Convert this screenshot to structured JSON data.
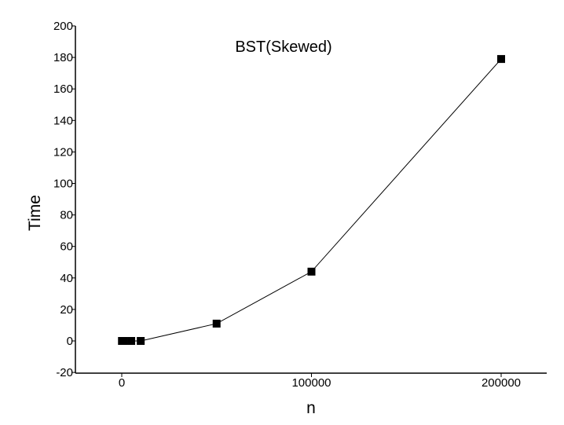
{
  "chart_data": {
    "type": "line",
    "title": "BST(Skewed)",
    "xlabel": "n",
    "ylabel": "Time",
    "xlim": [
      -25000,
      225000
    ],
    "ylim": [
      -20,
      200
    ],
    "xticks": [
      0,
      100000,
      200000
    ],
    "xtick_labels": [
      "0",
      "100000",
      "200000"
    ],
    "yticks": [
      -20,
      0,
      20,
      40,
      60,
      80,
      100,
      120,
      140,
      160,
      180,
      200
    ],
    "ytick_labels": [
      "-20",
      "0",
      "20",
      "40",
      "60",
      "80",
      "100",
      "120",
      "140",
      "160",
      "180",
      "200"
    ],
    "grid": false,
    "legend": "none",
    "marker": "square",
    "series": [
      {
        "x": [
          100,
          1000,
          5000,
          10000,
          50000,
          100000,
          200000
        ],
        "y": [
          0,
          0,
          0,
          0,
          11,
          44,
          179
        ]
      }
    ],
    "colors": {
      "line": "#000000",
      "marker": "#000000",
      "axis": "#000000"
    }
  }
}
